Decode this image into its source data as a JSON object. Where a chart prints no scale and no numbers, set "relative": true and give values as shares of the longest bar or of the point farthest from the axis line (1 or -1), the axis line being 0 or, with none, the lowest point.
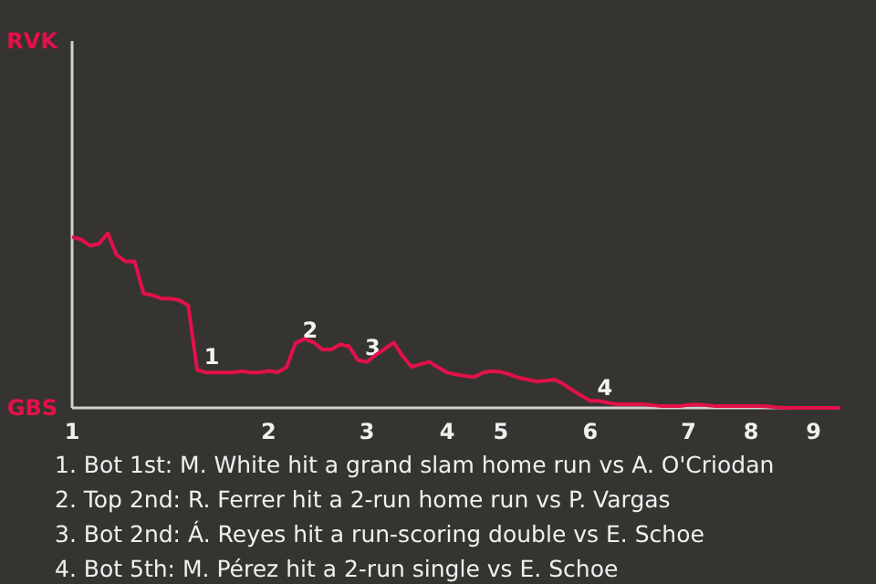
{
  "chart_data": {
    "type": "line",
    "relative": true,
    "categories": [
      "1",
      null,
      null,
      null,
      null,
      null,
      null,
      null,
      null,
      null,
      null,
      null,
      null,
      null,
      null,
      null,
      null,
      null,
      null,
      null,
      null,
      null,
      "2",
      null,
      null,
      null,
      null,
      null,
      null,
      null,
      null,
      null,
      null,
      "3",
      null,
      null,
      null,
      null,
      null,
      null,
      null,
      null,
      "4",
      null,
      null,
      null,
      null,
      null,
      "5",
      null,
      null,
      null,
      null,
      null,
      null,
      null,
      null,
      null,
      "6",
      null,
      null,
      null,
      null,
      null,
      null,
      null,
      null,
      null,
      null,
      "7",
      null,
      null,
      null,
      null,
      null,
      null,
      "8",
      null,
      null,
      null,
      null,
      null,
      null,
      "9",
      null,
      null,
      null
    ],
    "marker": "none",
    "line_style": "solid",
    "series": [
      {
        "color": "#e3114a",
        "values": [
          0.979,
          0.964,
          0.929,
          0.939,
          1,
          0.874,
          0.838,
          0.838,
          0.655,
          0.645,
          0.626,
          0.626,
          0.616,
          0.586,
          0.218,
          0.202,
          0.202,
          0.202,
          0.202,
          0.21,
          0.202,
          0.202,
          0.212,
          0.204,
          0.233,
          0.37,
          0.395,
          0.376,
          0.334,
          0.334,
          0.363,
          0.353,
          0.273,
          0.263,
          0.303,
          0.338,
          0.374,
          0.296,
          0.235,
          0.25,
          0.263,
          0.231,
          0.202,
          0.191,
          0.183,
          0.176,
          0.202,
          0.21,
          0.206,
          0.191,
          0.172,
          0.162,
          0.151,
          0.155,
          0.162,
          0.137,
          0.101,
          0.071,
          0.04,
          0.04,
          0.029,
          0.021,
          0.021,
          0.021,
          0.021,
          0.015,
          0.011,
          0.011,
          0.011,
          0.017,
          0.019,
          0.015,
          0.011,
          0.011,
          0.011,
          0.011,
          0.011,
          0.011,
          0.008,
          0.002,
          0,
          0,
          0,
          0,
          0,
          0,
          0
        ]
      }
    ],
    "annotations": [
      "RVK",
      "GBS",
      {
        "text": "1",
        "y": 0.218
      },
      {
        "text": "2",
        "y": 0.37
      },
      {
        "text": "3",
        "y": 0.273
      },
      {
        "text": "4",
        "y": 0.04
      },
      "1. Bot 1st: M. White hit a grand slam home run vs A. O'Criodan",
      "2. Top 2nd: R. Ferrer hit a 2-run home run vs P. Vargas",
      "3. Bot 2nd: Á. Reyes hit a run-scoring double vs E. Schoe",
      "4. Bot 5th: M. Pérez hit a 2-run single vs E. Schoe"
    ]
  }
}
